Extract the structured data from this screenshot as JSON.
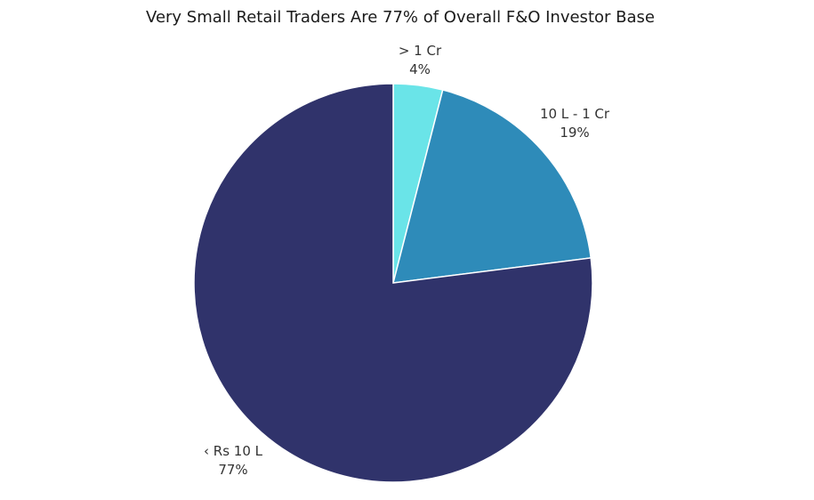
{
  "chart_data": {
    "type": "pie",
    "title": "Very Small Retail Traders Are 77% of Overall F&O Investor Base",
    "start_angle_deg": 0,
    "direction": "clockwise",
    "slices": [
      {
        "label": "> 1 Cr",
        "value": 4,
        "value_label": "4%",
        "color": "#6ae4e8"
      },
      {
        "label": "10 L - 1 Cr",
        "value": 19,
        "value_label": "19%",
        "color": "#2e8bb9"
      },
      {
        "label": "‹ Rs 10 L",
        "value": 77,
        "value_label": "77%",
        "color": "#30336b"
      }
    ],
    "legend": "none",
    "data_labels": "outside"
  }
}
